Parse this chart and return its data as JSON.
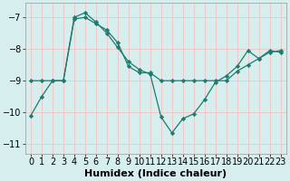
{
  "xlabel": "Humidex (Indice chaleur)",
  "bg_color": "#d6eeee",
  "grid_color": "#f0c8c8",
  "line_color": "#1e7b6e",
  "marker_color": "#1e7b6e",
  "xlim": [
    -0.5,
    23.5
  ],
  "ylim": [
    -11.3,
    -6.55
  ],
  "yticks": [
    -11,
    -10,
    -9,
    -8,
    -7
  ],
  "xticks": [
    0,
    1,
    2,
    3,
    4,
    5,
    6,
    7,
    8,
    9,
    10,
    11,
    12,
    13,
    14,
    15,
    16,
    17,
    18,
    19,
    20,
    21,
    22,
    23
  ],
  "line1_x": [
    0,
    1,
    2,
    3,
    4,
    5,
    6,
    7,
    8,
    9,
    10,
    11,
    12,
    13,
    14,
    15,
    16,
    17,
    18,
    19,
    20,
    21,
    22,
    23
  ],
  "line1_y": [
    -10.1,
    -9.5,
    -9.0,
    -9.0,
    -7.0,
    -6.85,
    -7.15,
    -7.5,
    -7.95,
    -8.4,
    -8.65,
    -8.8,
    -10.15,
    -10.65,
    -10.2,
    -10.05,
    -9.6,
    -9.05,
    -8.85,
    -8.55,
    -8.05,
    -8.3,
    -8.05,
    -8.1
  ],
  "line2_x": [
    0,
    1,
    2,
    3,
    4,
    5,
    6,
    7,
    8,
    9,
    10,
    11,
    12,
    13,
    14,
    15,
    16,
    17,
    18,
    19,
    20,
    21,
    22,
    23
  ],
  "line2_y": [
    -9.0,
    -9.0,
    -9.0,
    -9.0,
    -7.05,
    -7.0,
    -7.2,
    -7.4,
    -7.8,
    -8.55,
    -8.75,
    -8.75,
    -9.0,
    -9.0,
    -9.0,
    -9.0,
    -9.0,
    -9.0,
    -9.0,
    -8.7,
    -8.5,
    -8.3,
    -8.1,
    -8.05
  ],
  "font_size": 7.0,
  "xlabel_fontsize": 8.0
}
